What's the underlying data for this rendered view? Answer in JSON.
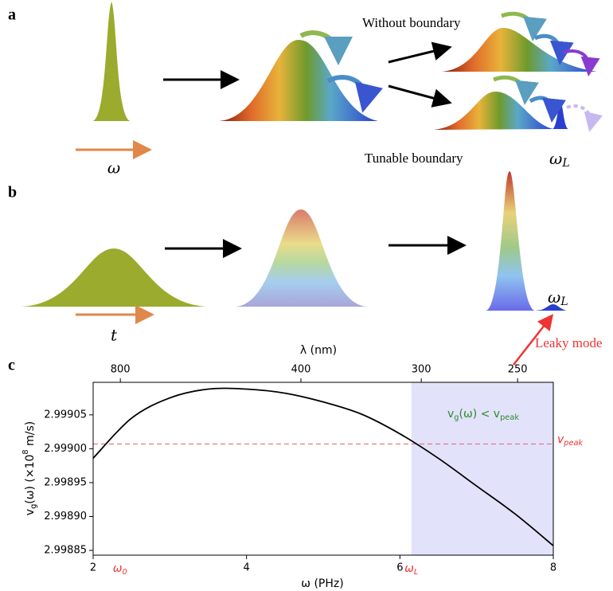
{
  "panel_a": {
    "label": "a",
    "input_label": "ω",
    "without_boundary": "Without boundary",
    "tunable_boundary": "Tunable boundary",
    "omega_L": {
      "symbol": "ω",
      "subscript": "L"
    }
  },
  "panel_b": {
    "label": "b",
    "input_label": "t",
    "omega_L": {
      "symbol": "ω",
      "subscript": "L"
    },
    "leaky_mode": "Leaky mode"
  },
  "chart_data": {
    "type": "line",
    "panel_label": "c",
    "x_label": "ω (PHz)",
    "x2_label": "λ (nm)",
    "y_label": {
      "symbol": "v",
      "subscript": "g",
      "text": "(ω) (×10",
      "exponent": "8",
      "unit": " m/s)"
    },
    "x": [
      2,
      2.5,
      3,
      3.5,
      4,
      4.5,
      5,
      5.5,
      6,
      6.5,
      7,
      7.5,
      8
    ],
    "values": [
      2.998986,
      2.999045,
      2.999075,
      2.999088,
      2.999088,
      2.999082,
      2.999069,
      2.999051,
      2.999022,
      2.998986,
      2.998945,
      2.998904,
      2.998857
    ],
    "color": "#000000",
    "xlim": [
      2,
      8
    ],
    "xticks": [
      2,
      4,
      6,
      8
    ],
    "x2ticks": [
      800,
      400,
      300,
      250
    ],
    "ylim": [
      2.998843,
      2.999098
    ],
    "yticks": [
      2.99885,
      {
        "value": 2.9989,
        "label": "2.99890"
      },
      2.99895,
      {
        "value": 2.999,
        "label": "2.99900"
      },
      2.99905
    ],
    "hline": 2.999007,
    "hline_color": "#e8707a",
    "hline_label": {
      "symbol": "v",
      "subscript": "peak"
    },
    "shade_x": [
      6.15,
      8
    ],
    "shade_color": "#e2e2fa",
    "region_label": {
      "symbol": "v",
      "subscript": "g",
      "text": "(ω) < v",
      "subscript2": "peak"
    },
    "x_markers": [
      {
        "x": 2.35,
        "symbol": "ω",
        "subscript": "0"
      },
      {
        "x": 6.15,
        "symbol": "ω",
        "subscript": "L"
      }
    ]
  }
}
